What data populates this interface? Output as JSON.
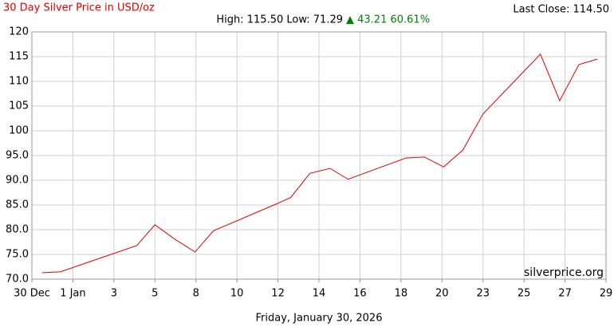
{
  "chart_data": {
    "type": "line",
    "title": "30 Day Silver Price in USD/oz",
    "stats": "High: 115.50 Low: 71.29",
    "change": "▲ 43.21 60.61%",
    "last_close": "Last Close: 114.50",
    "watermark": "silverprice.org",
    "xlabel": "Friday, January 30, 2026",
    "x": [
      0.25,
      0.7,
      2.56,
      3.0,
      3.5,
      3.98,
      4.43,
      5.96,
      6.31,
      6.78,
      7.27,
      7.71,
      9.12,
      9.57,
      10.04,
      10.51,
      11.0,
      12.4,
      12.87,
      13.34,
      13.79
    ],
    "series": [
      {
        "name": "Silver",
        "color": "#e00000",
        "values": [
          71.29,
          71.5,
          76.8,
          81.0,
          78.0,
          75.5,
          79.8,
          85.2,
          86.5,
          91.4,
          92.4,
          90.2,
          94.5,
          94.7,
          92.7,
          96.1,
          103.4,
          115.5,
          106.1,
          113.4,
          114.5
        ]
      }
    ],
    "xlim": [
      0,
      14
    ],
    "xticks": [
      {
        "value": 0,
        "label": "30 Dec"
      },
      {
        "value": 1,
        "label": "1 Jan"
      },
      {
        "value": 2,
        "label": "3"
      },
      {
        "value": 3,
        "label": "5"
      },
      {
        "value": 4,
        "label": "8"
      },
      {
        "value": 5,
        "label": "10"
      },
      {
        "value": 6,
        "label": "12"
      },
      {
        "value": 7,
        "label": "14"
      },
      {
        "value": 8,
        "label": "16"
      },
      {
        "value": 9,
        "label": "18"
      },
      {
        "value": 10,
        "label": "20"
      },
      {
        "value": 11,
        "label": "23"
      },
      {
        "value": 12,
        "label": "25"
      },
      {
        "value": 13,
        "label": "27"
      },
      {
        "value": 14,
        "label": "29"
      }
    ],
    "ylim": [
      70,
      120
    ],
    "yticks": [
      {
        "value": 70,
        "label": "70.0"
      },
      {
        "value": 75,
        "label": "75.0"
      },
      {
        "value": 80,
        "label": "80.0"
      },
      {
        "value": 85,
        "label": "85.0"
      },
      {
        "value": 90,
        "label": "90.0"
      },
      {
        "value": 95,
        "label": "95.0"
      },
      100,
      105,
      110,
      115,
      120
    ],
    "grid": true
  }
}
